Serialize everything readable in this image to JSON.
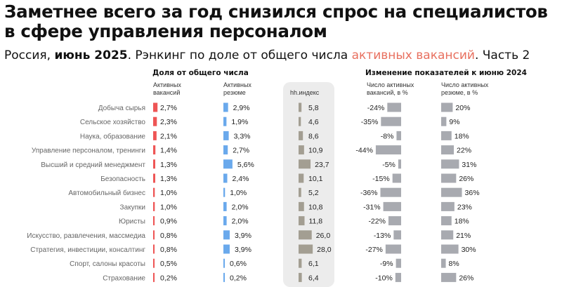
{
  "title": "Заметнее всего за год снизился спрос на специалистов в сфере управления персоналом",
  "subtitle": {
    "part1": "Россия, ",
    "part2": "июнь 2025",
    "part3": ". Рэнкинг по доле от общего числа ",
    "part4": "активных вакансий",
    "part5": ". Часть 2"
  },
  "headers": {
    "share": "Доля от общего числа",
    "change": "Изменение показателей к июню 2024",
    "vacancies": [
      "Активных",
      "вакансий"
    ],
    "resumes": [
      "Активных",
      "резюме"
    ],
    "hh": "hh.индекс",
    "vac_change": [
      "Число активных",
      "вакансий, в %"
    ],
    "res_change": [
      "Число активных",
      "резюме, в %"
    ]
  },
  "colors": {
    "vacancies": "#ee5555",
    "resumes": "#6aa9ec",
    "hh": "#a39e92",
    "change": "#a8aab0",
    "accent": "#e8705f",
    "panel": "#ececec"
  },
  "chart_data": {
    "type": "table",
    "categories": [
      "Добыча сырья",
      "Сельское хозяйство",
      "Наука, образование",
      "Управление персоналом, тренинги",
      "Высший и средний менеджмент",
      "Безопасность",
      "Автомобильный бизнес",
      "Закупки",
      "Юристы",
      "Искусство, развлечения, массмедиа",
      "Стратегия, инвестиции, консалтинг",
      "Спорт, салоны красоты",
      "Страхование"
    ],
    "vacancies_share": [
      2.7,
      2.3,
      2.1,
      1.4,
      1.3,
      1.3,
      1.0,
      1.0,
      0.9,
      0.8,
      0.8,
      0.5,
      0.2
    ],
    "vacancies_share_labels": [
      "2,7%",
      "2,3%",
      "2,1%",
      "1,4%",
      "1,3%",
      "1,3%",
      "1,0%",
      "1,0%",
      "0,9%",
      "0,8%",
      "0,8%",
      "0,5%",
      "0,2%"
    ],
    "resumes_share": [
      2.9,
      1.9,
      3.3,
      2.7,
      5.6,
      2.4,
      1.0,
      2.0,
      2.0,
      3.9,
      3.9,
      0.6,
      0.2
    ],
    "resumes_share_labels": [
      "2,9%",
      "1,9%",
      "3,3%",
      "2,7%",
      "5,6%",
      "2,4%",
      "1,0%",
      "2,0%",
      "2,0%",
      "3,9%",
      "3,9%",
      "0,6%",
      "0,2%"
    ],
    "hh_index": [
      5.8,
      4.6,
      8.6,
      10.9,
      23.7,
      10.1,
      5.2,
      10.8,
      11.8,
      26.0,
      28.0,
      6.1,
      6.4
    ],
    "hh_index_labels": [
      "5,8",
      "4,6",
      "8,6",
      "10,9",
      "23,7",
      "10,1",
      "5,2",
      "10,8",
      "11,8",
      "26,0",
      "28,0",
      "6,1",
      "6,4"
    ],
    "vacancies_change": [
      -24,
      -35,
      -8,
      -44,
      -5,
      -15,
      -36,
      -31,
      -22,
      -13,
      -27,
      -9,
      -10
    ],
    "vacancies_change_labels": [
      "-24%",
      "-35%",
      "-8%",
      "-44%",
      "-5%",
      "-15%",
      "-36%",
      "-31%",
      "-22%",
      "-13%",
      "-27%",
      "-9%",
      "-10%"
    ],
    "resumes_change": [
      20,
      9,
      18,
      22,
      31,
      26,
      36,
      23,
      18,
      21,
      30,
      8,
      26
    ],
    "resumes_change_labels": [
      "20%",
      "9%",
      "18%",
      "22%",
      "31%",
      "26%",
      "36%",
      "23%",
      "18%",
      "21%",
      "30%",
      "8%",
      "26%"
    ]
  }
}
